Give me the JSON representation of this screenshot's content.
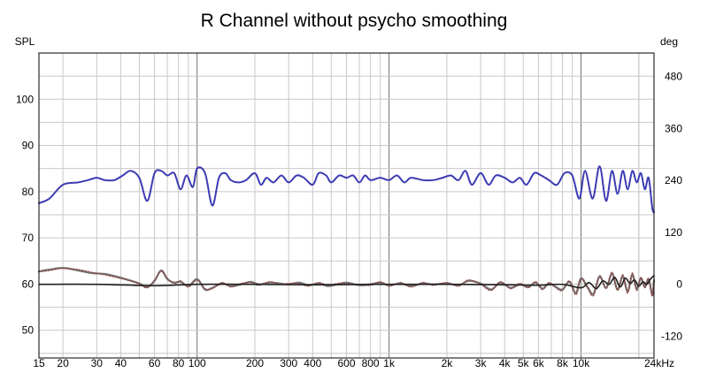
{
  "chart_data": {
    "type": "line",
    "title": "R Channel without psycho smoothing",
    "xscale": "log",
    "xlim": [
      15,
      24000
    ],
    "ylim": [
      44,
      110
    ],
    "y2lim": [
      -170,
      534
    ],
    "ylabel": "SPL",
    "y2label": "deg",
    "xticks": [
      15,
      20,
      30,
      40,
      60,
      80,
      100,
      200,
      300,
      400,
      600,
      800,
      1000,
      2000,
      3000,
      4000,
      5000,
      6000,
      8000,
      10000,
      24000
    ],
    "xtick_labels": [
      "15",
      "20",
      "30",
      "40",
      "60",
      "80",
      "100",
      "200",
      "300",
      "400",
      "600",
      "800",
      "1k",
      "2k",
      "3k",
      "4k",
      "5k",
      "6k",
      "8k",
      "10k",
      "24kHz"
    ],
    "yticks": [
      50,
      60,
      70,
      80,
      90,
      100
    ],
    "y2ticks": [
      -120,
      0,
      120,
      240,
      360,
      480
    ],
    "grid": true,
    "colors": {
      "spl": "#3c3cb4",
      "phase": "#777777",
      "phase_dotted": "#8a4a4a",
      "group": "#202020",
      "grid_minor": "#c8c8c8",
      "grid_major": "#707070",
      "frame": "#000000"
    },
    "series": [
      {
        "key": "spl",
        "axis": "left",
        "x": [
          15,
          17,
          20,
          24,
          27,
          30,
          33,
          37,
          41,
          45,
          50,
          55,
          60,
          65,
          70,
          76,
          82,
          88,
          95,
          100,
          110,
          120,
          130,
          140,
          150,
          165,
          180,
          200,
          215,
          230,
          250,
          275,
          300,
          330,
          360,
          400,
          430,
          470,
          500,
          550,
          600,
          650,
          700,
          750,
          800,
          900,
          1000,
          1100,
          1200,
          1300,
          1500,
          1700,
          1900,
          2100,
          2300,
          2500,
          2700,
          3000,
          3300,
          3600,
          4000,
          4400,
          4800,
          5200,
          5700,
          6200,
          6800,
          7500,
          8200,
          9000,
          9800,
          10500,
          11500,
          12500,
          13500,
          14500,
          15500,
          16500,
          17500,
          18500,
          19500,
          20500,
          21500,
          22500,
          23500,
          24000
        ],
        "y": [
          77.5,
          78.5,
          81.5,
          82,
          82.5,
          83,
          82.5,
          82.5,
          83.5,
          84.5,
          83,
          78,
          84,
          84.5,
          83.5,
          84,
          80.5,
          83.5,
          81,
          85,
          84,
          77,
          83,
          84,
          82.5,
          82,
          82.5,
          84,
          81.5,
          83,
          82,
          83.5,
          82,
          83.5,
          83,
          81.5,
          84,
          83.5,
          82,
          83.5,
          83,
          83.5,
          82,
          83.5,
          82.5,
          83,
          82.5,
          83.5,
          82,
          83,
          82.5,
          82.5,
          83,
          83.5,
          82.5,
          84.5,
          81.5,
          84,
          81.5,
          83.5,
          83,
          82,
          83,
          81.5,
          84,
          83.5,
          82.5,
          81.5,
          84,
          83.5,
          78.5,
          84.5,
          78.5,
          85.5,
          78,
          84.5,
          79.5,
          84.5,
          80.5,
          84.5,
          82,
          84,
          80.5,
          83,
          76.5,
          75.5
        ]
      },
      {
        "key": "phase",
        "axis": "right",
        "x": [
          15,
          17,
          20,
          24,
          28,
          33,
          38,
          44,
          50,
          55,
          60,
          65,
          70,
          76,
          82,
          90,
          100,
          110,
          120,
          135,
          150,
          170,
          190,
          210,
          240,
          270,
          300,
          340,
          380,
          430,
          480,
          540,
          600,
          700,
          800,
          900,
          1000,
          1150,
          1300,
          1500,
          1700,
          2000,
          2300,
          2600,
          3000,
          3400,
          3800,
          4300,
          4800,
          5300,
          5800,
          6300,
          6800,
          7400,
          8000,
          8700,
          9400,
          10000,
          10800,
          11600,
          12500,
          13500,
          14500,
          15500,
          16500,
          17500,
          18500,
          19500,
          20500,
          21500,
          22500,
          23500,
          24000
        ],
        "y": [
          30,
          34,
          38,
          32,
          26,
          24,
          18,
          10,
          2,
          -6,
          8,
          32,
          12,
          4,
          6,
          -4,
          12,
          -12,
          -8,
          2,
          -4,
          0,
          6,
          0,
          4,
          2,
          0,
          4,
          -2,
          2,
          -4,
          0,
          4,
          -2,
          0,
          4,
          -2,
          2,
          -4,
          2,
          0,
          2,
          -2,
          8,
          2,
          -12,
          4,
          -8,
          0,
          -6,
          4,
          -10,
          2,
          -6,
          -12,
          6,
          -20,
          14,
          -6,
          -22,
          18,
          -8,
          24,
          -12,
          18,
          -16,
          22,
          -10,
          14,
          -6,
          12,
          -24,
          10
        ]
      },
      {
        "key": "phase_dotted",
        "axis": "right",
        "x": [
          15,
          17,
          20,
          24,
          28,
          33,
          38,
          44,
          50,
          55,
          60,
          65,
          70,
          76,
          82,
          90,
          100,
          110,
          120,
          135,
          150,
          170,
          190,
          210,
          240,
          270,
          300,
          340,
          380,
          430,
          480,
          540,
          600,
          700,
          800,
          900,
          1000,
          1150,
          1300,
          1500,
          1700,
          2000,
          2300,
          2600,
          3000,
          3400,
          3800,
          4300,
          4800,
          5300,
          5800,
          6300,
          6800,
          7400,
          8000,
          8700,
          9400,
          10000,
          10800,
          11600,
          12500,
          13500,
          14500,
          15500,
          16500,
          17500,
          18500,
          19500,
          20500,
          21500,
          22500,
          23500,
          24000
        ],
        "y": [
          29,
          32,
          37,
          34,
          28,
          22,
          16,
          9,
          1,
          -8,
          10,
          30,
          14,
          2,
          8,
          -6,
          10,
          -10,
          -10,
          4,
          -6,
          2,
          4,
          -2,
          6,
          0,
          2,
          2,
          -4,
          4,
          -2,
          2,
          2,
          0,
          -2,
          6,
          -4,
          4,
          -6,
          4,
          -2,
          4,
          -4,
          10,
          0,
          -14,
          6,
          -10,
          2,
          -8,
          6,
          -12,
          4,
          -8,
          -14,
          8,
          -24,
          12,
          -8,
          -26,
          20,
          -10,
          28,
          -14,
          22,
          -20,
          26,
          -14,
          16,
          -8,
          14,
          -28,
          8
        ]
      },
      {
        "key": "group",
        "axis": "right",
        "x": [
          15,
          30,
          60,
          100,
          200,
          400,
          800,
          1000,
          2000,
          4000,
          6000,
          8000,
          10000,
          11000,
          12000,
          13000,
          14000,
          15000,
          16000,
          17000,
          18000,
          19000,
          20000,
          21000,
          22000,
          23000,
          24000
        ],
        "y": [
          0,
          0,
          -3,
          0,
          0,
          -1,
          0,
          0,
          0,
          -1,
          -2,
          0,
          -8,
          4,
          -10,
          8,
          0,
          16,
          -6,
          14,
          2,
          10,
          -4,
          6,
          0,
          12,
          20
        ]
      }
    ]
  }
}
